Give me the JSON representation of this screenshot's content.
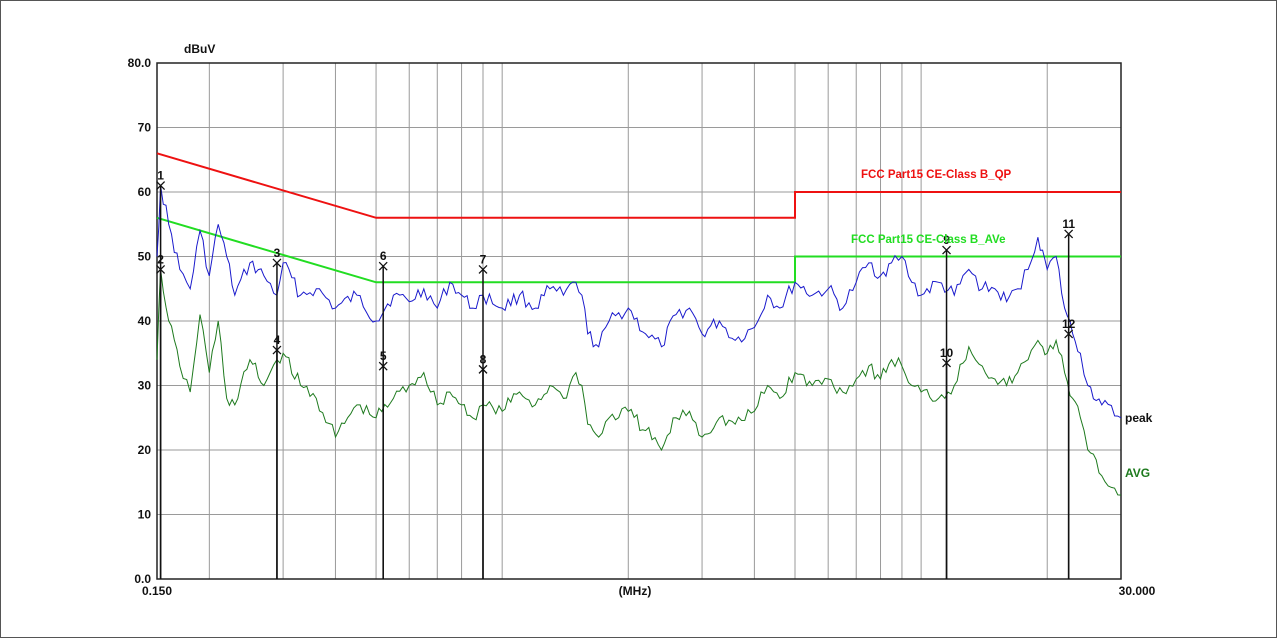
{
  "chart_data": {
    "type": "line",
    "ylabel": "dBuV",
    "xunit_label": "(MHz)",
    "x_scale": "log",
    "xlim": [
      0.15,
      30
    ],
    "ylim": [
      0,
      80
    ],
    "x_tick_labels": [
      "0.150",
      "30.000"
    ],
    "y_ticks": [
      {
        "value": 80,
        "label": "80.0"
      },
      {
        "value": 70,
        "label": "70"
      },
      {
        "value": 60,
        "label": "60"
      },
      {
        "value": 50,
        "label": "50"
      },
      {
        "value": 40,
        "label": "40"
      },
      {
        "value": 30,
        "label": "30"
      },
      {
        "value": 20,
        "label": "20"
      },
      {
        "value": 10,
        "label": "10"
      },
      {
        "value": 0,
        "label": "0.0"
      }
    ],
    "grid": true,
    "limit_lines": [
      {
        "label": "FCC Part15 CE-Class B_QP",
        "color": "#ee1111",
        "points": [
          [
            0.15,
            66
          ],
          [
            0.5,
            56
          ],
          [
            5,
            56
          ],
          [
            5,
            60
          ],
          [
            30,
            60
          ]
        ]
      },
      {
        "label": "FCC Part15 CE-Class B_AVe",
        "color": "#22dd22",
        "points": [
          [
            0.15,
            56
          ],
          [
            0.5,
            46
          ],
          [
            5,
            46
          ],
          [
            5,
            50
          ],
          [
            30,
            50
          ]
        ]
      }
    ],
    "series": [
      {
        "name": "peak",
        "color": "#1a1acc",
        "points": [
          [
            0.15,
            50
          ],
          [
            0.153,
            61
          ],
          [
            0.16,
            55
          ],
          [
            0.17,
            48
          ],
          [
            0.18,
            45
          ],
          [
            0.19,
            54
          ],
          [
            0.2,
            47
          ],
          [
            0.21,
            55
          ],
          [
            0.22,
            50
          ],
          [
            0.23,
            44
          ],
          [
            0.25,
            49
          ],
          [
            0.27,
            47
          ],
          [
            0.29,
            44
          ],
          [
            0.3,
            49
          ],
          [
            0.33,
            44
          ],
          [
            0.36,
            45
          ],
          [
            0.4,
            42
          ],
          [
            0.45,
            44
          ],
          [
            0.5,
            40
          ],
          [
            0.55,
            44
          ],
          [
            0.6,
            43
          ],
          [
            0.65,
            45
          ],
          [
            0.7,
            42
          ],
          [
            0.75,
            46
          ],
          [
            0.8,
            44
          ],
          [
            0.85,
            42
          ],
          [
            0.9,
            44
          ],
          [
            1.0,
            42
          ],
          [
            1.1,
            44
          ],
          [
            1.2,
            42
          ],
          [
            1.3,
            45
          ],
          [
            1.4,
            44
          ],
          [
            1.5,
            46
          ],
          [
            1.55,
            44
          ],
          [
            1.6,
            38
          ],
          [
            1.7,
            36
          ],
          [
            1.8,
            40
          ],
          [
            2.0,
            42
          ],
          [
            2.2,
            38
          ],
          [
            2.4,
            36
          ],
          [
            2.6,
            41
          ],
          [
            2.8,
            42
          ],
          [
            3.0,
            38
          ],
          [
            3.3,
            40
          ],
          [
            3.6,
            37
          ],
          [
            4.0,
            39
          ],
          [
            4.3,
            44
          ],
          [
            4.6,
            42
          ],
          [
            5.0,
            46
          ],
          [
            5.5,
            44
          ],
          [
            6.0,
            45
          ],
          [
            6.5,
            42
          ],
          [
            7.0,
            46
          ],
          [
            7.5,
            49
          ],
          [
            8.0,
            47
          ],
          [
            8.5,
            49
          ],
          [
            9.0,
            50
          ],
          [
            9.5,
            46
          ],
          [
            10,
            44
          ],
          [
            11,
            46
          ],
          [
            12,
            44
          ],
          [
            13,
            48
          ],
          [
            14,
            45
          ],
          [
            15,
            45
          ],
          [
            16,
            43
          ],
          [
            17,
            45
          ],
          [
            18,
            48
          ],
          [
            19,
            53
          ],
          [
            19.5,
            51
          ],
          [
            20,
            48
          ],
          [
            21,
            50
          ],
          [
            22,
            42
          ],
          [
            23,
            38
          ],
          [
            24,
            35
          ],
          [
            25,
            30
          ],
          [
            27,
            27
          ],
          [
            30,
            25
          ]
        ]
      },
      {
        "name": "AVG",
        "color": "#1e7a1e",
        "points": [
          [
            0.15,
            34
          ],
          [
            0.153,
            48
          ],
          [
            0.16,
            40
          ],
          [
            0.17,
            33
          ],
          [
            0.18,
            29
          ],
          [
            0.19,
            41
          ],
          [
            0.2,
            32
          ],
          [
            0.21,
            40
          ],
          [
            0.22,
            28
          ],
          [
            0.23,
            27
          ],
          [
            0.25,
            34
          ],
          [
            0.27,
            30
          ],
          [
            0.29,
            34
          ],
          [
            0.3,
            35
          ],
          [
            0.33,
            30
          ],
          [
            0.36,
            28
          ],
          [
            0.4,
            22
          ],
          [
            0.45,
            27
          ],
          [
            0.5,
            25
          ],
          [
            0.55,
            28
          ],
          [
            0.6,
            30
          ],
          [
            0.65,
            32
          ],
          [
            0.7,
            27
          ],
          [
            0.75,
            29
          ],
          [
            0.8,
            27
          ],
          [
            0.85,
            25
          ],
          [
            0.9,
            27
          ],
          [
            1.0,
            26
          ],
          [
            1.1,
            29
          ],
          [
            1.2,
            27
          ],
          [
            1.3,
            30
          ],
          [
            1.4,
            28
          ],
          [
            1.5,
            32
          ],
          [
            1.55,
            30
          ],
          [
            1.6,
            24
          ],
          [
            1.7,
            22
          ],
          [
            1.8,
            25
          ],
          [
            2.0,
            26
          ],
          [
            2.2,
            23
          ],
          [
            2.4,
            20
          ],
          [
            2.6,
            25
          ],
          [
            2.8,
            26
          ],
          [
            3.0,
            22
          ],
          [
            3.3,
            25
          ],
          [
            3.6,
            24
          ],
          [
            4.0,
            26
          ],
          [
            4.3,
            30
          ],
          [
            4.6,
            28
          ],
          [
            5.0,
            32
          ],
          [
            5.5,
            30
          ],
          [
            6.0,
            31
          ],
          [
            6.5,
            29
          ],
          [
            7.0,
            31
          ],
          [
            7.5,
            33
          ],
          [
            8.0,
            31
          ],
          [
            8.5,
            34
          ],
          [
            9.0,
            33
          ],
          [
            9.5,
            30
          ],
          [
            10,
            29
          ],
          [
            11,
            28
          ],
          [
            12,
            30
          ],
          [
            13,
            36
          ],
          [
            14,
            33
          ],
          [
            15,
            31
          ],
          [
            16,
            30
          ],
          [
            17,
            32
          ],
          [
            18,
            34
          ],
          [
            19,
            37
          ],
          [
            19.5,
            36
          ],
          [
            20,
            35
          ],
          [
            21,
            37
          ],
          [
            22,
            32
          ],
          [
            23,
            28
          ],
          [
            24,
            25
          ],
          [
            25,
            20
          ],
          [
            27,
            16
          ],
          [
            30,
            13
          ]
        ]
      }
    ],
    "markers": [
      {
        "label": "1",
        "x": 0.153,
        "y": 61
      },
      {
        "label": "2",
        "x": 0.153,
        "y": 48
      },
      {
        "label": "3",
        "x": 0.29,
        "y": 49
      },
      {
        "label": "4",
        "x": 0.29,
        "y": 35.5
      },
      {
        "label": "5",
        "x": 0.52,
        "y": 33
      },
      {
        "label": "6",
        "x": 0.52,
        "y": 48.5
      },
      {
        "label": "7",
        "x": 0.9,
        "y": 48
      },
      {
        "label": "8",
        "x": 0.9,
        "y": 32.5
      },
      {
        "label": "9",
        "x": 11.5,
        "y": 51
      },
      {
        "label": "10",
        "x": 11.5,
        "y": 33.5
      },
      {
        "label": "11",
        "x": 22.5,
        "y": 53.5
      },
      {
        "label": "12",
        "x": 22.5,
        "y": 38
      }
    ]
  }
}
